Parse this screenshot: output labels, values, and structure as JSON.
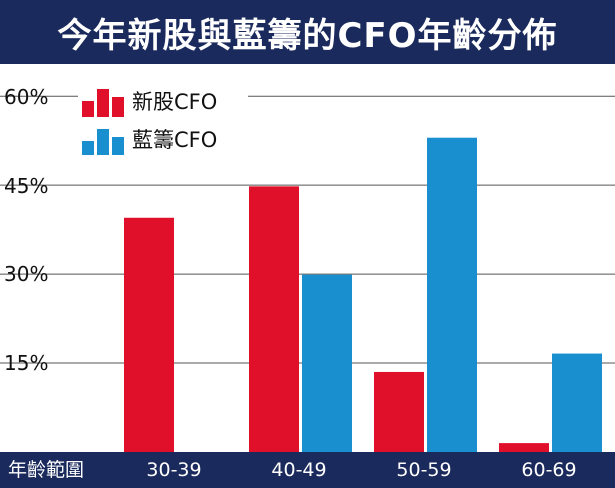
{
  "chart_data": {
    "type": "bar",
    "title": "今年新股與藍籌的CFO年齡分佈",
    "xlabel": "年齡範圍",
    "ylabel": "",
    "categories": [
      "30-39",
      "40-49",
      "50-59",
      "60-69"
    ],
    "series": [
      {
        "name": "新股CFO",
        "color": "#e0102a",
        "values": [
          39.5,
          44.8,
          13.5,
          1.5
        ]
      },
      {
        "name": "藍籌CFO",
        "color": "#1a8fd0",
        "values": [
          0,
          29.9,
          53.0,
          16.6
        ]
      }
    ],
    "ylim": [
      0,
      60
    ],
    "yticks": [
      "15%",
      "30%",
      "45%",
      "60%"
    ],
    "grid": true,
    "legend_position": "top-left"
  }
}
